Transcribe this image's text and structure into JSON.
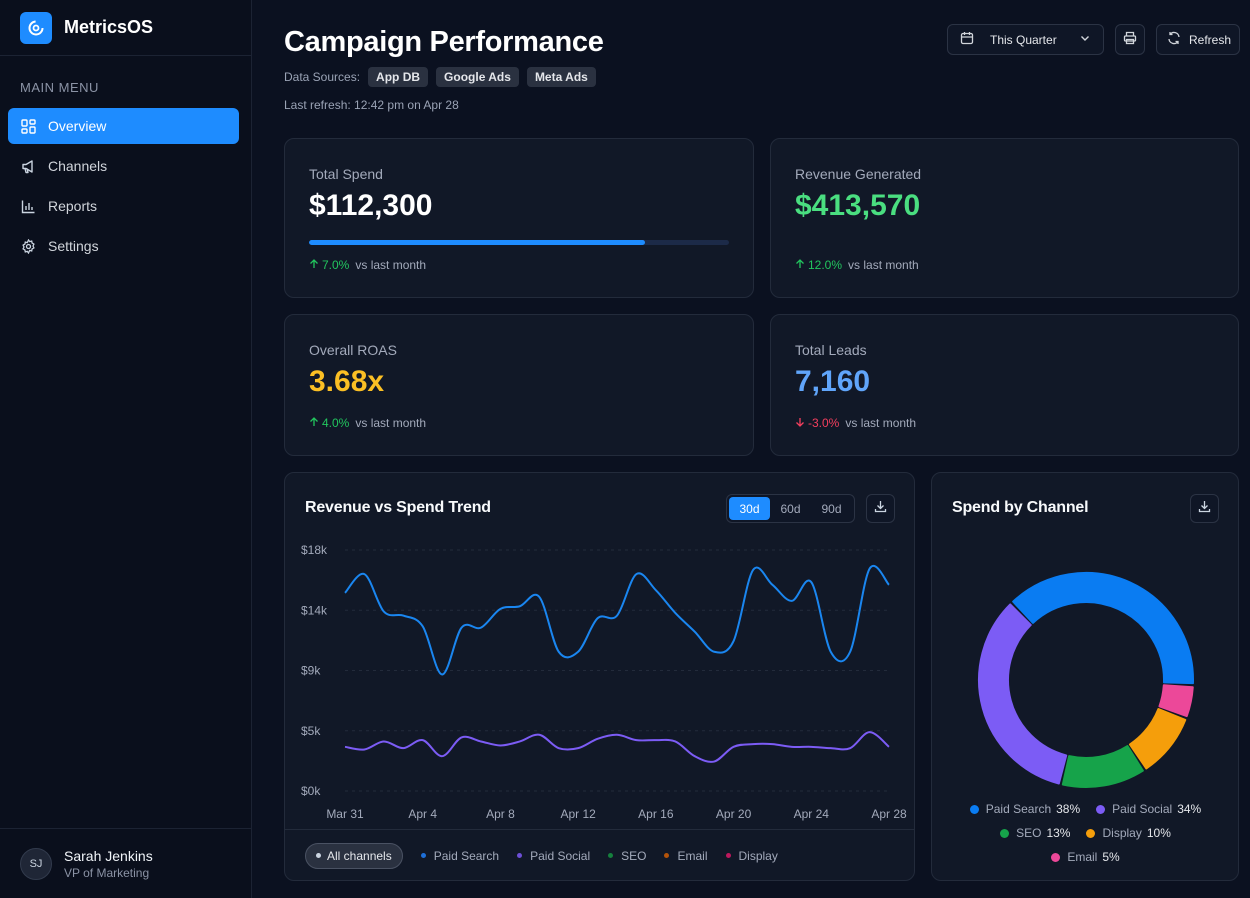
{
  "app": {
    "name": "MetricsOS"
  },
  "sidebar": {
    "section_title": "MAIN MENU",
    "items": [
      {
        "label": "Overview",
        "icon": "grid-icon",
        "active": true
      },
      {
        "label": "Channels",
        "icon": "megaphone-icon",
        "active": false
      },
      {
        "label": "Reports",
        "icon": "bar-chart-icon",
        "active": false
      },
      {
        "label": "Settings",
        "icon": "gear-icon",
        "active": false
      }
    ],
    "user": {
      "initials": "SJ",
      "name": "Sarah Jenkins",
      "role": "VP of Marketing"
    }
  },
  "header": {
    "title": "Campaign Performance",
    "sources_label": "Data Sources:",
    "sources": [
      "App DB",
      "Google Ads",
      "Meta Ads"
    ],
    "last_refresh": "Last refresh: 12:42 pm on Apr 28",
    "period_select": "This Quarter",
    "refresh_label": "Refresh"
  },
  "kpis": {
    "spend": {
      "label": "Total Spend",
      "value": "$112,300",
      "delta": "7.0%",
      "direction": "up",
      "vs": "vs last month",
      "progress": 0.8,
      "color": "#ffffff"
    },
    "revenue": {
      "label": "Revenue Generated",
      "value": "$413,570",
      "delta": "12.0%",
      "direction": "up",
      "vs": "vs last month",
      "color": "#4ade80"
    },
    "roas": {
      "label": "Overall ROAS",
      "value": "3.68x",
      "delta": "4.0%",
      "direction": "up",
      "vs": "vs last month",
      "color": "#fbbf24"
    },
    "leads": {
      "label": "Total Leads",
      "value": "7,160",
      "delta": "-3.0%",
      "direction": "down",
      "vs": "vs last month",
      "color": "#60a5fa"
    }
  },
  "trend": {
    "title": "Revenue vs Spend Trend",
    "ranges": [
      "30d",
      "60d",
      "90d"
    ],
    "active_range": "30d",
    "filter_all": "All channels",
    "filters": [
      {
        "label": "Paid Search",
        "color": "#1e6fd9"
      },
      {
        "label": "Paid Social",
        "color": "#6d4fd6"
      },
      {
        "label": "SEO",
        "color": "#15803d"
      },
      {
        "label": "Email",
        "color": "#b45309"
      },
      {
        "label": "Display",
        "color": "#be185d"
      }
    ]
  },
  "donut": {
    "title": "Spend by Channel",
    "legend": [
      {
        "label": "Paid Search",
        "pct": "38%",
        "color": "#0a7cf2"
      },
      {
        "label": "Paid Social",
        "pct": "34%",
        "color": "#7c5cf5"
      },
      {
        "label": "SEO",
        "pct": "13%",
        "color": "#16a34a"
      },
      {
        "label": "Display",
        "pct": "10%",
        "color": "#f59e0b"
      },
      {
        "label": "Email",
        "pct": "5%",
        "color": "#ec4899"
      }
    ]
  },
  "chart_data": [
    {
      "type": "line",
      "title": "Revenue vs Spend Trend",
      "x": [
        "Mar 31",
        "Apr 1",
        "Apr 2",
        "Apr 3",
        "Apr 4",
        "Apr 5",
        "Apr 6",
        "Apr 7",
        "Apr 8",
        "Apr 9",
        "Apr 10",
        "Apr 11",
        "Apr 12",
        "Apr 13",
        "Apr 14",
        "Apr 15",
        "Apr 16",
        "Apr 17",
        "Apr 18",
        "Apr 19",
        "Apr 20",
        "Apr 21",
        "Apr 22",
        "Apr 23",
        "Apr 24",
        "Apr 25",
        "Apr 26",
        "Apr 27",
        "Apr 28"
      ],
      "xticks": [
        "Mar 31",
        "Apr 4",
        "Apr 8",
        "Apr 12",
        "Apr 16",
        "Apr 20",
        "Apr 24",
        "Apr 28"
      ],
      "yticks": [
        "$0k",
        "$5k",
        "$9k",
        "$14k",
        "$18k"
      ],
      "ylim": [
        0,
        18000
      ],
      "grid": true,
      "series": [
        {
          "color": "#1a86f0",
          "values": [
            14800,
            16200,
            13400,
            13100,
            12300,
            8700,
            12200,
            12200,
            13600,
            13800,
            14500,
            10400,
            10400,
            12900,
            13100,
            16200,
            15000,
            13300,
            11900,
            10400,
            11200,
            16500,
            15400,
            14200,
            15600,
            10400,
            10400,
            16600,
            15400
          ]
        },
        {
          "color": "#7c5cf5",
          "values": [
            3300,
            3100,
            3700,
            3200,
            3800,
            2600,
            4000,
            3700,
            3400,
            3700,
            4200,
            3200,
            3200,
            3900,
            4200,
            3800,
            3800,
            3700,
            2600,
            2200,
            3300,
            3500,
            3500,
            3300,
            3300,
            3200,
            3200,
            4400,
            3300
          ]
        }
      ]
    },
    {
      "type": "pie",
      "title": "Spend by Channel",
      "categories": [
        "Paid Search",
        "Paid Social",
        "SEO",
        "Display",
        "Email"
      ],
      "values": [
        38,
        34,
        13,
        10,
        5
      ]
    }
  ]
}
